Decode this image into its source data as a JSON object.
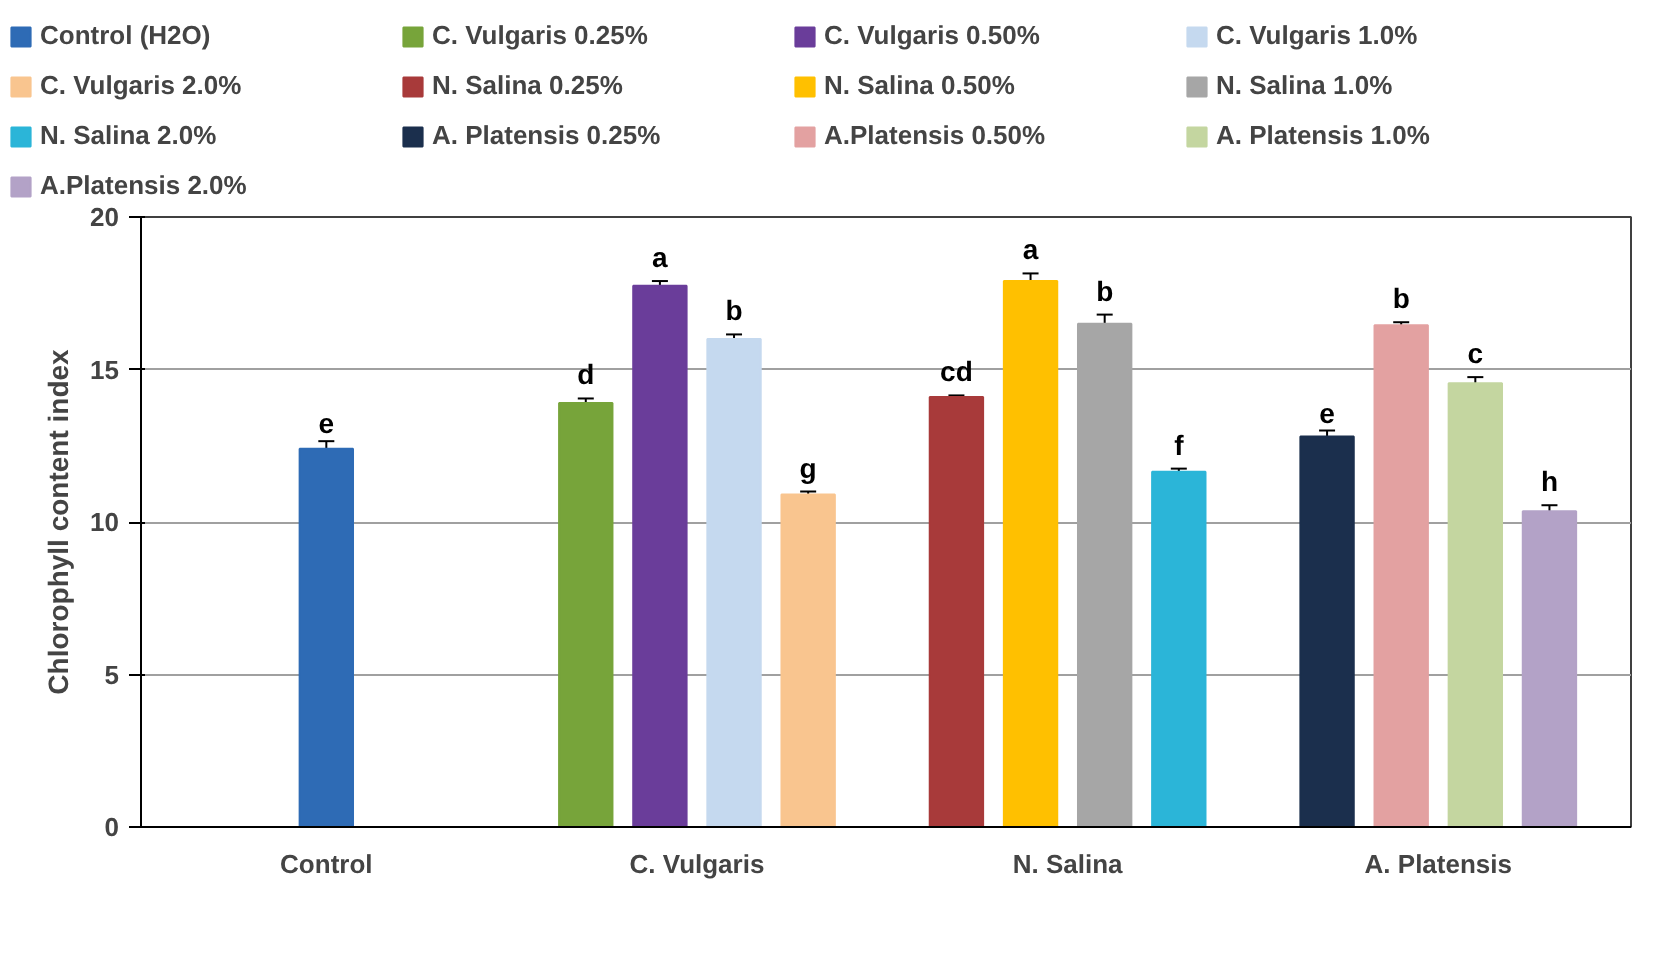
{
  "chart_data": {
    "type": "bar",
    "ylabel": "Chlorophyll content index",
    "categories": [
      "Control",
      "C. Vulgaris",
      "N. Salina",
      "A. Platensis"
    ],
    "series": [
      {
        "name": "Control (H2O)",
        "color": "#2e6bb5",
        "values": [
          12.4,
          null,
          null,
          null
        ],
        "errors": [
          0.25,
          null,
          null,
          null
        ],
        "value_labels": [
          "e",
          null,
          null,
          null
        ]
      },
      {
        "name": "C. Vulgaris 0.25%",
        "color": "#77a43a",
        "values": [
          null,
          13.9,
          null,
          null
        ],
        "errors": [
          null,
          0.15,
          null,
          null
        ],
        "value_labels": [
          null,
          "d",
          null,
          null
        ]
      },
      {
        "name": "C. Vulgaris 0.50%",
        "color": "#6a3d9a",
        "values": [
          null,
          17.75,
          null,
          null
        ],
        "errors": [
          null,
          0.15,
          null,
          null
        ],
        "value_labels": [
          null,
          "a",
          null,
          null
        ]
      },
      {
        "name": "C. Vulgaris 1.0%",
        "color": "#c5d9ef",
        "values": [
          null,
          16.0,
          null,
          null
        ],
        "errors": [
          null,
          0.15,
          null,
          null
        ],
        "value_labels": [
          null,
          "b",
          null,
          null
        ]
      },
      {
        "name": "C. Vulgaris 2.0%",
        "color": "#f9c58f",
        "values": [
          null,
          10.9,
          null,
          null
        ],
        "errors": [
          null,
          0.1,
          null,
          null
        ],
        "value_labels": [
          null,
          "g",
          null,
          null
        ]
      },
      {
        "name": "N. Salina 0.25%",
        "color": "#a83a3a",
        "values": [
          null,
          null,
          14.1,
          null
        ],
        "errors": [
          null,
          null,
          0.05,
          null
        ],
        "value_labels": [
          null,
          null,
          "cd",
          null
        ]
      },
      {
        "name": "N. Salina 0.50%",
        "color": "#ffc000",
        "values": [
          null,
          null,
          17.9,
          null
        ],
        "errors": [
          null,
          null,
          0.25,
          null
        ],
        "value_labels": [
          null,
          null,
          "a",
          null
        ]
      },
      {
        "name": "N. Salina 1.0%",
        "color": "#a6a6a6",
        "values": [
          null,
          null,
          16.5,
          null
        ],
        "errors": [
          null,
          null,
          0.3,
          null
        ],
        "value_labels": [
          null,
          null,
          "b",
          null
        ]
      },
      {
        "name": "N. Salina 2.0%",
        "color": "#2bb5d8",
        "values": [
          null,
          null,
          11.65,
          null
        ],
        "errors": [
          null,
          null,
          0.1,
          null
        ],
        "value_labels": [
          null,
          null,
          "f",
          null
        ]
      },
      {
        "name": "A. Platensis 0.25%",
        "color": "#1b2f4d",
        "values": [
          null,
          null,
          null,
          12.8
        ],
        "errors": [
          null,
          null,
          null,
          0.2
        ],
        "value_labels": [
          null,
          null,
          null,
          "e"
        ]
      },
      {
        "name": "A.Platensis 0.50%",
        "color": "#e3a1a1",
        "values": [
          null,
          null,
          null,
          16.45
        ],
        "errors": [
          null,
          null,
          null,
          0.1
        ],
        "value_labels": [
          null,
          null,
          null,
          "b"
        ]
      },
      {
        "name": "A. Platensis 1.0%",
        "color": "#c4d6a0",
        "values": [
          null,
          null,
          null,
          14.55
        ],
        "errors": [
          null,
          null,
          null,
          0.2
        ],
        "value_labels": [
          null,
          null,
          null,
          "c"
        ]
      },
      {
        "name": "A.Platensis 2.0%",
        "color": "#b3a2c7",
        "values": [
          null,
          null,
          null,
          10.35
        ],
        "errors": [
          null,
          null,
          null,
          0.2
        ],
        "value_labels": [
          null,
          null,
          null,
          "h"
        ]
      }
    ],
    "ylim": [
      0,
      20
    ],
    "yticks": [
      0,
      5,
      10,
      15,
      20
    ],
    "grid": "y",
    "legend": "top"
  }
}
